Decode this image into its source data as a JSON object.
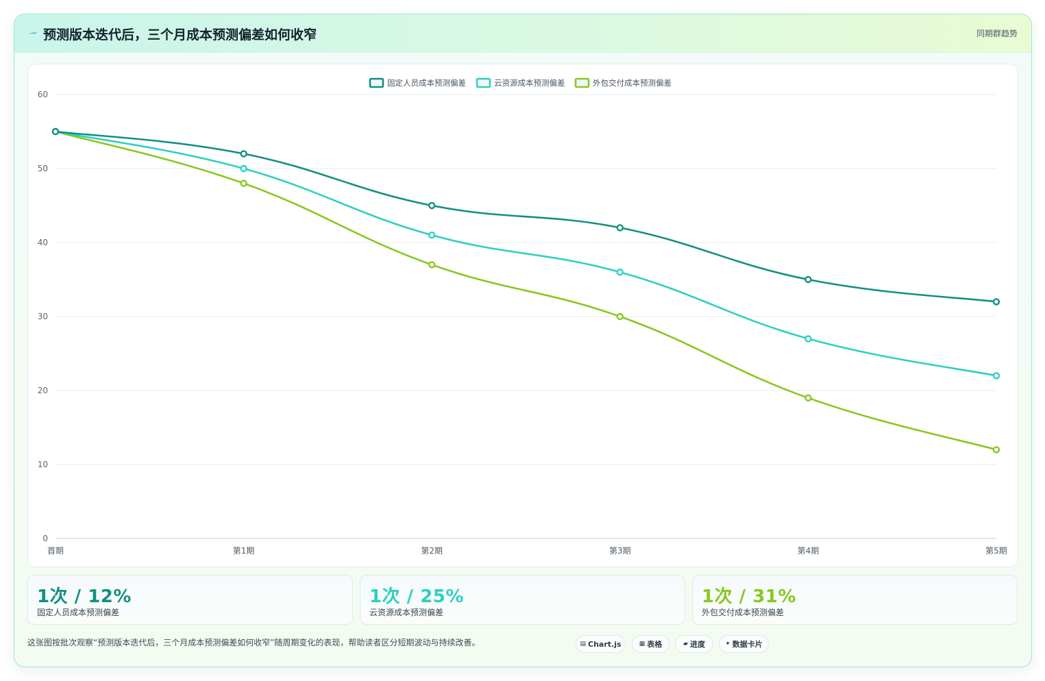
{
  "header": {
    "title": "预测版本迭代后，三个月成本预测偏差如何收窄",
    "tag": "同期群趋势",
    "icon": "lightning-icon"
  },
  "chart_data": {
    "type": "line",
    "title": "",
    "xlabel": "",
    "ylabel": "",
    "categories": [
      "首期",
      "第1期",
      "第2期",
      "第3期",
      "第4期",
      "第5期"
    ],
    "ylim": [
      0,
      60
    ],
    "yticks": [
      0,
      10,
      20,
      30,
      40,
      50,
      60
    ],
    "grid": true,
    "legend_position": "top-center",
    "series": [
      {
        "name": "固定人员成本预测偏差",
        "color": "#148f82",
        "values": [
          55,
          52,
          45,
          42,
          35,
          32
        ]
      },
      {
        "name": "云资源成本预测偏差",
        "color": "#2fd0c0",
        "values": [
          55,
          50,
          41,
          36,
          27,
          22
        ]
      },
      {
        "name": "外包交付成本预测偏差",
        "color": "#88c820",
        "values": [
          55,
          48,
          37,
          30,
          19,
          12
        ]
      }
    ]
  },
  "stats": [
    {
      "value": "1次 / 12%",
      "label": "固定人员成本预测偏差",
      "color": "#148f82"
    },
    {
      "value": "1次 / 25%",
      "label": "云资源成本预测偏差",
      "color": "#2fd0c0"
    },
    {
      "value": "1次 / 31%",
      "label": "外包交付成本预测偏差",
      "color": "#88c820"
    }
  ],
  "footer": {
    "note": "这张图按批次观察“预测版本迭代后，三个月成本预测偏差如何收窄”随周期变化的表现，帮助读者区分短期波动与持续改善。",
    "pills": [
      {
        "icon": "▤",
        "label": "Chart.js",
        "icon_name": "chart-icon"
      },
      {
        "icon": "▦",
        "label": "表格",
        "icon_name": "table-icon"
      },
      {
        "icon": "▰",
        "label": "进度",
        "icon_name": "progress-icon"
      },
      {
        "icon": "✦",
        "label": "数据卡片",
        "icon_name": "sparkle-icon"
      }
    ]
  }
}
